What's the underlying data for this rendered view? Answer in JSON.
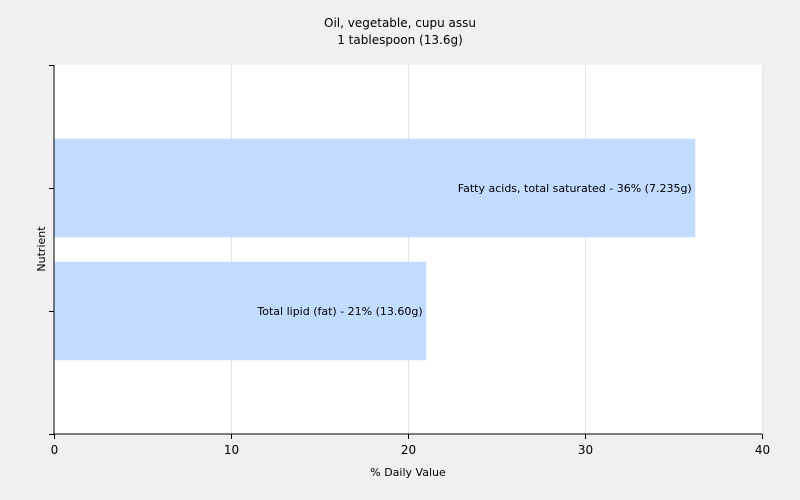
{
  "chart_data": {
    "type": "bar",
    "orientation": "horizontal",
    "title": "Oil, vegetable, cupu assu",
    "subtitle": "1 tablespoon (13.6g)",
    "xlabel": "% Daily Value",
    "ylabel": "Nutrient",
    "xlim": [
      0,
      40
    ],
    "xticks": [
      0,
      10,
      20,
      30,
      40
    ],
    "grid": true,
    "bar_color": "#c2dcff",
    "categories": [
      "Fatty acids, total saturated",
      "Total lipid (fat)"
    ],
    "values": [
      36.2,
      21
    ],
    "labels": [
      "Fatty acids, total saturated - 36% (7.235g)",
      "Total lipid (fat) - 21% (13.60g)"
    ]
  }
}
